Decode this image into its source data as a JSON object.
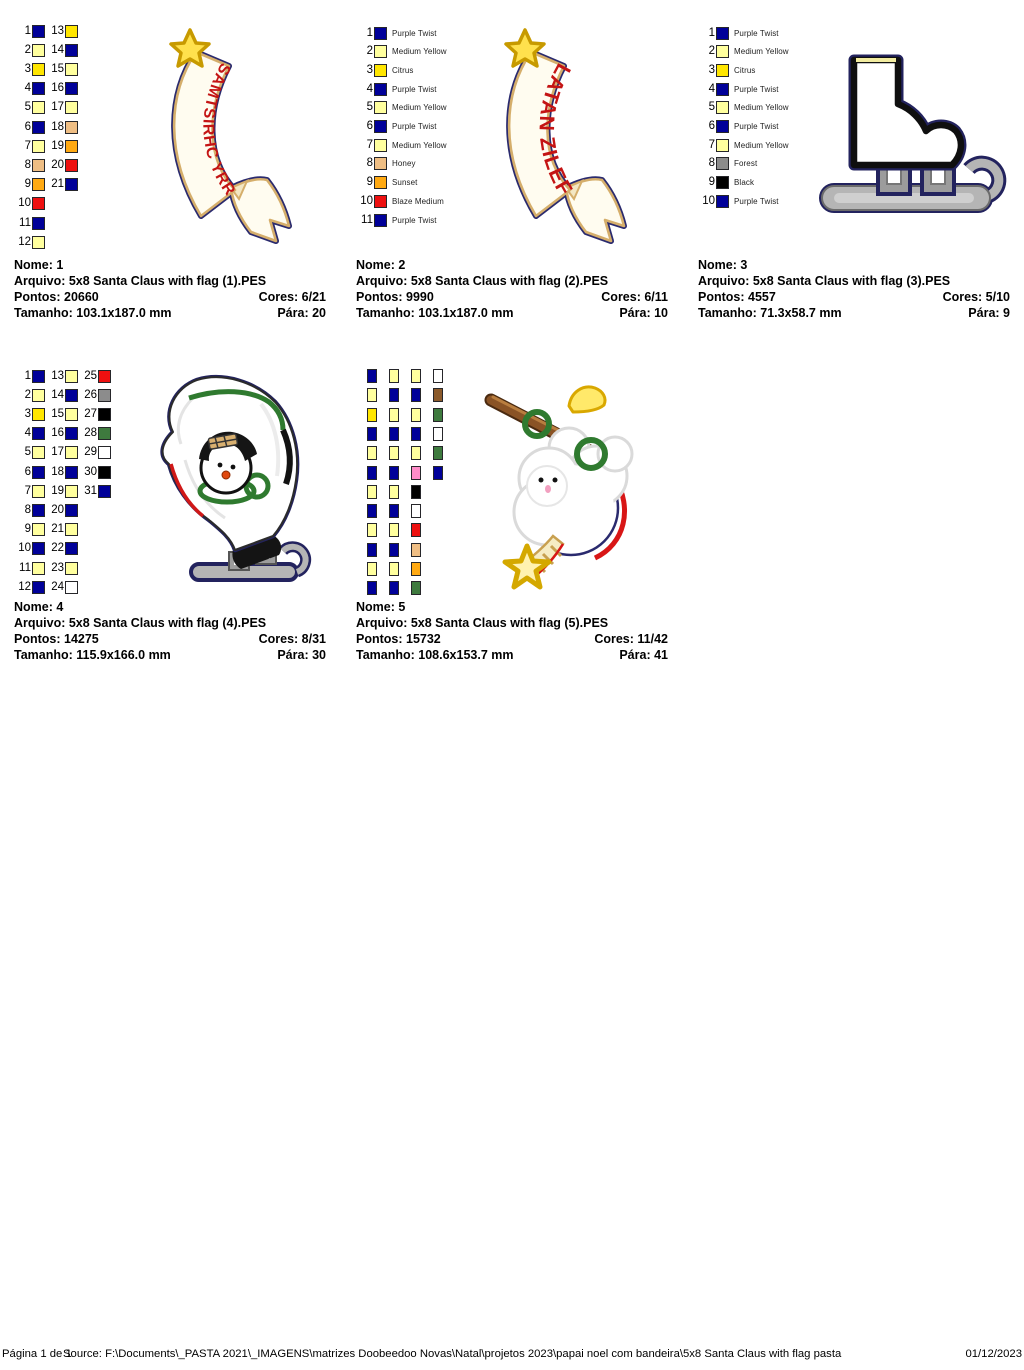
{
  "banner_texts": {
    "design1": "MERRY CHRISTMAS",
    "design2": "FELIZ NATAL"
  },
  "footer": {
    "page_label": "Página 1 de 1",
    "source": "Source: F:\\Documents\\_PASTA 2021\\_IMAGENS\\matrizes Doobeedoo Novas\\Natal\\projetos 2023\\papai noel com bandeira\\5x8 Santa Claus with flag pasta",
    "date": "01/12/2023"
  },
  "swatch_colors": {
    "navy": "#000099",
    "pale_yellow": "#FFFF9E",
    "citrus_yellow": "#FFE600",
    "honey": "#EFBE84",
    "sunset_orange": "#FFA912",
    "blaze_red": "#EE1010",
    "gray": "#8C8C8C",
    "black": "#000000",
    "green": "#3E7A3E",
    "white": "#FFFFFF",
    "pink": "#FF8CC8",
    "brown": "#8B5A2B"
  },
  "designs": [
    {
      "info": {
        "nome": "Nome: 1",
        "arquivo": "Arquivo: 5x8 Santa Claus with flag (1).PES",
        "pontos": "Pontos: 20660",
        "cores": "Cores: 6/21",
        "tamanho": "Tamanho: 103.1x187.0 mm",
        "para": "Pára: 20"
      },
      "palette": {
        "style": "numbered",
        "columns": [
          [
            {
              "n": 1,
              "c": "#000099"
            },
            {
              "n": 2,
              "c": "#FFFF9E"
            },
            {
              "n": 3,
              "c": "#FFE600"
            },
            {
              "n": 4,
              "c": "#000099"
            },
            {
              "n": 5,
              "c": "#FFFF9E"
            },
            {
              "n": 6,
              "c": "#000099"
            },
            {
              "n": 7,
              "c": "#FFFF9E"
            },
            {
              "n": 8,
              "c": "#EFBE84"
            },
            {
              "n": 9,
              "c": "#FFA912"
            },
            {
              "n": 10,
              "c": "#EE1010"
            },
            {
              "n": 11,
              "c": "#000099"
            },
            {
              "n": 12,
              "c": "#FFFF9E"
            }
          ],
          [
            {
              "n": 13,
              "c": "#FFE600"
            },
            {
              "n": 14,
              "c": "#000099"
            },
            {
              "n": 15,
              "c": "#FFFF9E"
            },
            {
              "n": 16,
              "c": "#000099"
            },
            {
              "n": 17,
              "c": "#FFFF9E"
            },
            {
              "n": 18,
              "c": "#EFBE84"
            },
            {
              "n": 19,
              "c": "#FFA912"
            },
            {
              "n": 20,
              "c": "#EE1010"
            },
            {
              "n": 21,
              "c": "#000099"
            }
          ]
        ]
      }
    },
    {
      "info": {
        "nome": "Nome: 2",
        "arquivo": "Arquivo: 5x8 Santa Claus with flag (2).PES",
        "pontos": "Pontos: 9990",
        "cores": "Cores: 6/11",
        "tamanho": "Tamanho: 103.1x187.0 mm",
        "para": "Pára: 10"
      },
      "palette": {
        "style": "named",
        "entries": [
          {
            "n": 1,
            "c": "#000099",
            "name": "Purple Twist"
          },
          {
            "n": 2,
            "c": "#FFFF9E",
            "name": "Medium Yellow"
          },
          {
            "n": 3,
            "c": "#FFE600",
            "name": "Citrus"
          },
          {
            "n": 4,
            "c": "#000099",
            "name": "Purple Twist"
          },
          {
            "n": 5,
            "c": "#FFFF9E",
            "name": "Medium Yellow"
          },
          {
            "n": 6,
            "c": "#000099",
            "name": "Purple Twist"
          },
          {
            "n": 7,
            "c": "#FFFF9E",
            "name": "Medium Yellow"
          },
          {
            "n": 8,
            "c": "#EFBE84",
            "name": "Honey"
          },
          {
            "n": 9,
            "c": "#FFA912",
            "name": "Sunset"
          },
          {
            "n": 10,
            "c": "#EE1010",
            "name": "Blaze Medium"
          },
          {
            "n": 11,
            "c": "#000099",
            "name": "Purple Twist"
          }
        ]
      }
    },
    {
      "info": {
        "nome": "Nome: 3",
        "arquivo": "Arquivo: 5x8 Santa Claus with flag (3).PES",
        "pontos": "Pontos: 4557",
        "cores": "Cores: 5/10",
        "tamanho": "Tamanho: 71.3x58.7 mm",
        "para": "Pára: 9"
      },
      "palette": {
        "style": "named",
        "entries": [
          {
            "n": 1,
            "c": "#000099",
            "name": "Purple Twist"
          },
          {
            "n": 2,
            "c": "#FFFF9E",
            "name": "Medium Yellow"
          },
          {
            "n": 3,
            "c": "#FFE600",
            "name": "Citrus"
          },
          {
            "n": 4,
            "c": "#000099",
            "name": "Purple Twist"
          },
          {
            "n": 5,
            "c": "#FFFF9E",
            "name": "Medium Yellow"
          },
          {
            "n": 6,
            "c": "#000099",
            "name": "Purple Twist"
          },
          {
            "n": 7,
            "c": "#FFFF9E",
            "name": "Medium Yellow"
          },
          {
            "n": 8,
            "c": "#8C8C8C",
            "name": "Forest"
          },
          {
            "n": 9,
            "c": "#000000",
            "name": "Black"
          },
          {
            "n": 10,
            "c": "#000099",
            "name": "Purple Twist"
          }
        ]
      }
    },
    {
      "info": {
        "nome": "Nome: 4",
        "arquivo": "Arquivo: 5x8 Santa Claus with flag (4).PES",
        "pontos": "Pontos: 14275",
        "cores": "Cores: 8/31",
        "tamanho": "Tamanho: 115.9x166.0 mm",
        "para": "Pára: 30"
      },
      "palette": {
        "style": "numbered",
        "columns": [
          [
            {
              "n": 1,
              "c": "#000099"
            },
            {
              "n": 2,
              "c": "#FFFF9E"
            },
            {
              "n": 3,
              "c": "#FFE600"
            },
            {
              "n": 4,
              "c": "#000099"
            },
            {
              "n": 5,
              "c": "#FFFF9E"
            },
            {
              "n": 6,
              "c": "#000099"
            },
            {
              "n": 7,
              "c": "#FFFF9E"
            },
            {
              "n": 8,
              "c": "#000099"
            },
            {
              "n": 9,
              "c": "#FFFF9E"
            },
            {
              "n": 10,
              "c": "#000099"
            },
            {
              "n": 11,
              "c": "#FFFF9E"
            },
            {
              "n": 12,
              "c": "#000099"
            }
          ],
          [
            {
              "n": 13,
              "c": "#FFFF9E"
            },
            {
              "n": 14,
              "c": "#000099"
            },
            {
              "n": 15,
              "c": "#FFFF9E"
            },
            {
              "n": 16,
              "c": "#000099"
            },
            {
              "n": 17,
              "c": "#FFFF9E"
            },
            {
              "n": 18,
              "c": "#000099"
            },
            {
              "n": 19,
              "c": "#FFFF9E"
            },
            {
              "n": 20,
              "c": "#000099"
            },
            {
              "n": 21,
              "c": "#FFFF9E"
            },
            {
              "n": 22,
              "c": "#000099"
            },
            {
              "n": 23,
              "c": "#FFFF9E"
            },
            {
              "n": 24,
              "c": "#FFFFFF"
            }
          ],
          [
            {
              "n": 25,
              "c": "#EE1010"
            },
            {
              "n": 26,
              "c": "#8C8C8C"
            },
            {
              "n": 27,
              "c": "#000000"
            },
            {
              "n": 28,
              "c": "#3E7A3E"
            },
            {
              "n": 29,
              "c": "#FFFFFF"
            },
            {
              "n": 30,
              "c": "#000000"
            },
            {
              "n": 31,
              "c": "#000099"
            }
          ]
        ]
      }
    },
    {
      "info": {
        "nome": "Nome: 5",
        "arquivo": "Arquivo: 5x8 Santa Claus with flag (5).PES",
        "pontos": "Pontos: 15732",
        "cores": "Cores: 11/42",
        "tamanho": "Tamanho: 108.6x153.7 mm",
        "para": "Pára: 41"
      },
      "palette": {
        "style": "plain",
        "columns": [
          [
            "#000099",
            "#FFFF9E",
            "#FFE600",
            "#000099",
            "#FFFF9E",
            "#000099",
            "#FFFF9E",
            "#000099",
            "#FFFF9E",
            "#000099",
            "#FFFF9E",
            "#000099"
          ],
          [
            "#FFFF9E",
            "#000099",
            "#FFFF9E",
            "#000099",
            "#FFFF9E",
            "#000099",
            "#FFFF9E",
            "#000099",
            "#FFFF9E",
            "#000099",
            "#FFFF9E",
            "#000099"
          ],
          [
            "#FFFF9E",
            "#000099",
            "#FFFF9E",
            "#000099",
            "#FFFF9E",
            "#FF8CC8",
            "#000000",
            "#FFFFFF",
            "#EE1010",
            "#EFBE84",
            "#FFA912",
            "#3E7A3E"
          ],
          [
            "#FFFFFF",
            "#8B5A2B",
            "#3E7A3E",
            "#FFFFFF",
            "#3E7A3E",
            "#000099"
          ]
        ]
      }
    }
  ]
}
